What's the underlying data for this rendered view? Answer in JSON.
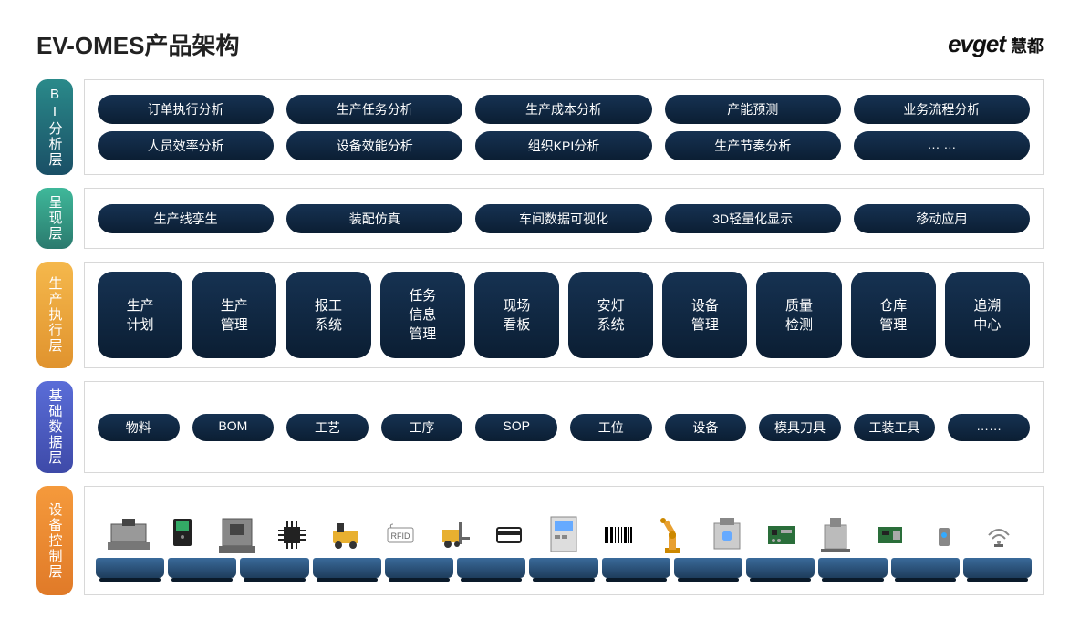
{
  "title": "EV-OMES产品架构",
  "logo": {
    "en": "evget",
    "cn": "慧都"
  },
  "colors": {
    "pill_bg_top": "#163252",
    "pill_bg_bottom": "#0b1e33",
    "border": "#d8d8d8",
    "pallet_top": "#3a6a9a",
    "pallet_bottom": "#1e3d5c"
  },
  "layers": [
    {
      "label": "BI分析层",
      "gradient": [
        "#2a8a8a",
        "#1a4f66"
      ],
      "rows": [
        [
          "订单执行分析",
          "生产任务分析",
          "生产成本分析",
          "产能预测",
          "业务流程分析"
        ],
        [
          "人员效率分析",
          "设备效能分析",
          "组织KPI分析",
          "生产节奏分析",
          "… …"
        ]
      ],
      "style": "pill"
    },
    {
      "label": "呈现层",
      "gradient": [
        "#3fb89a",
        "#2a7a6e"
      ],
      "rows": [
        [
          "生产线孪生",
          "装配仿真",
          "车间数据可视化",
          "3D轻量化显示",
          "移动应用"
        ]
      ],
      "style": "pill"
    },
    {
      "label": "生产执行层",
      "gradient": [
        "#f5b84c",
        "#e0932e"
      ],
      "rows": [
        [
          "生产\n计划",
          "生产\n管理",
          "报工\n系统",
          "任务\n信息\n管理",
          "现场\n看板",
          "安灯\n系统",
          "设备\n管理",
          "质量\n检测",
          "仓库\n管理",
          "追溯\n中心"
        ]
      ],
      "style": "box"
    },
    {
      "label": "基础数据层",
      "gradient": [
        "#5a6dd8",
        "#3e4aa8"
      ],
      "rows": [
        [
          "物料",
          "BOM",
          "工艺",
          "工序",
          "SOP",
          "工位",
          "设备",
          "模具刀具",
          "工装工具",
          "……"
        ]
      ],
      "style": "pill-sm"
    },
    {
      "label": "设备控制层",
      "gradient": [
        "#f59a3c",
        "#e07a28"
      ],
      "style": "equipment",
      "devices": [
        "cnc-machine",
        "controller",
        "press-machine",
        "chip",
        "agv",
        "rfid",
        "forklift",
        "card-reader",
        "plc-panel",
        "barcode",
        "robot-arm",
        "inspection",
        "circuit-board",
        "laser-marker",
        "pcb",
        "sensor",
        "wireless"
      ],
      "pallet_count": 13
    }
  ]
}
